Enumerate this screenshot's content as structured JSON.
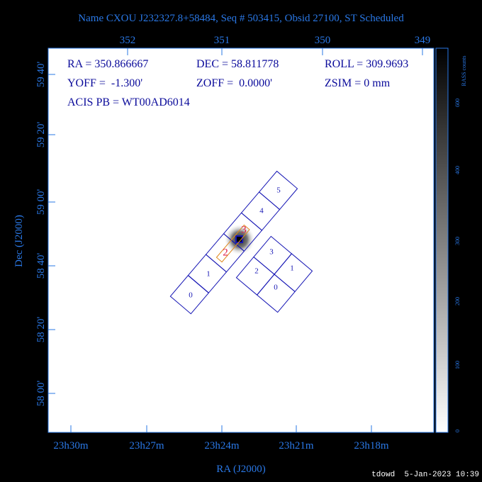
{
  "header": {
    "title": "Name CXOU J232327.8+58484, Seq # 503415, Obsid 27100, ST Scheduled"
  },
  "top_axis": {
    "ticks": [
      "352",
      "351",
      "350",
      "349"
    ]
  },
  "left_axis": {
    "label": "Dec (J2000)",
    "ticks": [
      "59 40'",
      "59 20'",
      "59 00'",
      "58 40'",
      "58 20'",
      "58 00'"
    ]
  },
  "bottom_axis": {
    "label": "RA (J2000)",
    "ticks": [
      "23h30m",
      "23h27m",
      "23h24m",
      "23h21m",
      "23h18m"
    ]
  },
  "colorbar": {
    "label": "RASS counts",
    "ticks": [
      "600",
      "400",
      "300",
      "200",
      "100",
      "0"
    ]
  },
  "info": [
    "RA = 350.866667",
    "DEC = 58.811778",
    "ROLL = 309.9693",
    "YOFF =  -1.300'",
    "ZOFF =  0.0000'",
    "ZSIM = 0 mm",
    "ACIS PB = WT00AD6014"
  ],
  "acis_s_chips": [
    "0",
    "1",
    "2",
    "3",
    "4",
    "5"
  ],
  "acis_i_chips": [
    "3",
    "1",
    "2",
    "0"
  ],
  "footer": "tdowd  5-Jan-2023 10:39"
}
